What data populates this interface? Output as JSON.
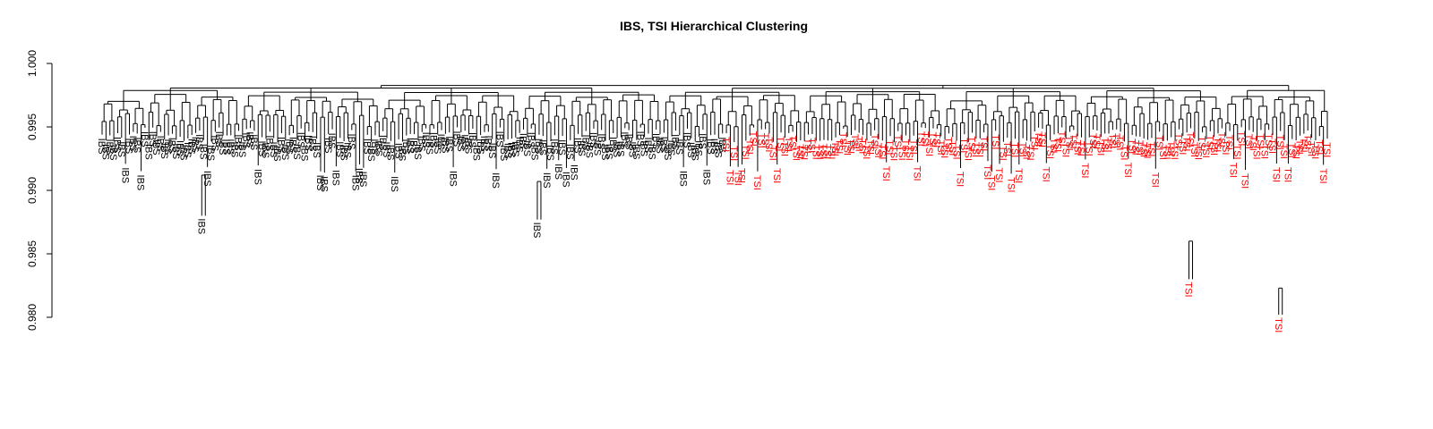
{
  "chart_data": {
    "type": "dendrogram",
    "title": "IBS, TSI Hierarchical Clustering",
    "ylabel": "",
    "xlabel": "",
    "ylim": [
      0.98,
      1.0
    ],
    "yticks": [
      "0.980",
      "0.985",
      "0.990",
      "0.995",
      "1.000"
    ],
    "ytick_values": [
      0.98,
      0.985,
      0.99,
      0.995,
      1.0
    ],
    "grid": false,
    "legend": "none",
    "colors": {
      "IBS": "#000000",
      "TSI": "#ff0000"
    },
    "groups": [
      {
        "name": "IBS",
        "leaf_count": 160
      },
      {
        "name": "TSI",
        "leaf_count": 155
      }
    ],
    "root_height": 0.9984,
    "notable_merges": [
      {
        "label": "IBS",
        "height": 0.9912,
        "bottom": 0.988
      },
      {
        "label": "IBS",
        "height": 0.9907,
        "bottom": 0.9877
      },
      {
        "label": "TSI",
        "height": 0.986,
        "bottom": 0.983
      },
      {
        "label": "TSI",
        "height": 0.9823,
        "bottom": 0.9802
      }
    ]
  }
}
